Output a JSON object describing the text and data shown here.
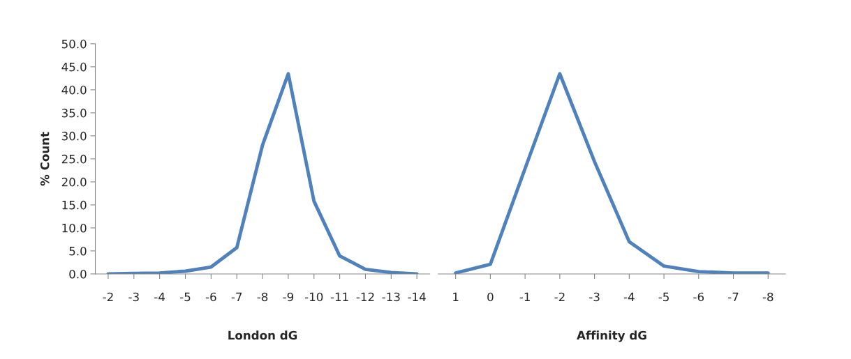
{
  "chart_data": [
    {
      "type": "line",
      "xlabel": "London dG",
      "ylabel": "% Count",
      "categories": [
        "-2",
        "-3",
        "-4",
        "-5",
        "-6",
        "-7",
        "-8",
        "-9",
        "-10",
        "-11",
        "-12",
        "-13",
        "-14"
      ],
      "series": [
        {
          "color": "#4f81bd",
          "values": [
            0.0,
            0.1,
            0.2,
            0.6,
            1.5,
            5.7,
            28.0,
            43.5,
            15.8,
            3.9,
            1.0,
            0.3,
            0.0
          ]
        }
      ],
      "ylim": [
        0,
        50
      ],
      "yticks": [
        {
          "value": 0,
          "label": "0.0"
        },
        {
          "value": 5,
          "label": "5.0"
        },
        {
          "value": 10,
          "label": "10.0"
        },
        {
          "value": 15,
          "label": "15.0"
        },
        {
          "value": 20,
          "label": "20.0"
        },
        {
          "value": 25,
          "label": "25.0"
        },
        {
          "value": 30,
          "label": "30.0"
        },
        {
          "value": 35,
          "label": "35.0"
        },
        {
          "value": 40,
          "label": "40.0"
        },
        {
          "value": 45,
          "label": "45.0"
        },
        {
          "value": 50,
          "label": "50.0"
        }
      ],
      "grid": false,
      "legend": false,
      "marker": "none",
      "line_style": "solid"
    },
    {
      "type": "line",
      "xlabel": "Affinity dG",
      "categories": [
        "1",
        "0",
        "-1",
        "-2",
        "-3",
        "-4",
        "-5",
        "-6",
        "-7",
        "-8"
      ],
      "series": [
        {
          "color": "#4f81bd",
          "values": [
            0.2,
            2.1,
            22.9,
            43.5,
            24.4,
            7.0,
            1.7,
            0.5,
            0.2,
            0.2
          ]
        }
      ],
      "ylim": [
        0,
        50
      ],
      "tick_labels": "x",
      "grid": false,
      "legend": false,
      "marker": "none",
      "line_style": "solid"
    }
  ]
}
